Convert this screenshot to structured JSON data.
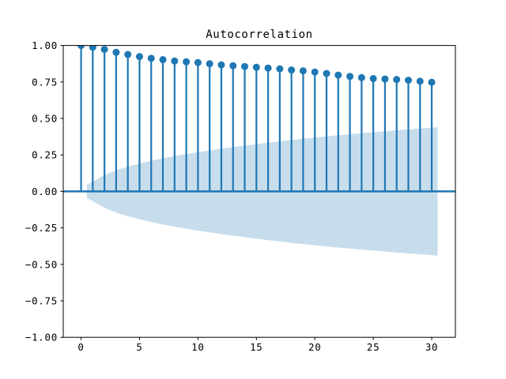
{
  "window": {
    "background": "#ffffff"
  },
  "chart_data": {
    "type": "stem",
    "title": "Autocorrelation",
    "xlabel": "",
    "ylabel": "",
    "xlim": [
      -1.525,
      32.025
    ],
    "ylim": [
      -1.0,
      1.0
    ],
    "grid": false,
    "legend": "none",
    "x": [
      0,
      1,
      2,
      3,
      4,
      5,
      6,
      7,
      8,
      9,
      10,
      11,
      12,
      13,
      14,
      15,
      16,
      17,
      18,
      19,
      20,
      21,
      22,
      23,
      24,
      25,
      26,
      27,
      28,
      29,
      30
    ],
    "values": [
      1.0,
      0.988,
      0.973,
      0.953,
      0.938,
      0.924,
      0.912,
      0.903,
      0.894,
      0.888,
      0.883,
      0.875,
      0.867,
      0.861,
      0.856,
      0.851,
      0.845,
      0.84,
      0.832,
      0.826,
      0.818,
      0.808,
      0.797,
      0.788,
      0.78,
      0.773,
      0.77,
      0.767,
      0.762,
      0.755,
      0.748
    ],
    "confidence_band": {
      "x": [
        0.5,
        1,
        2,
        3,
        4,
        5,
        6,
        7,
        8,
        9,
        10,
        11,
        12,
        13,
        14,
        15,
        16,
        17,
        18,
        19,
        20,
        21,
        22,
        23,
        24,
        25,
        26,
        27,
        28,
        29,
        30,
        30.5
      ],
      "halfwidth": [
        0.047,
        0.066,
        0.113,
        0.145,
        0.17,
        0.191,
        0.21,
        0.227,
        0.242,
        0.256,
        0.269,
        0.281,
        0.293,
        0.304,
        0.314,
        0.324,
        0.334,
        0.343,
        0.352,
        0.361,
        0.369,
        0.377,
        0.385,
        0.392,
        0.399,
        0.406,
        0.412,
        0.419,
        0.425,
        0.431,
        0.437,
        0.44
      ],
      "centered_at": 0.0,
      "fill_color": "#1f77b4",
      "fill_opacity": 0.25
    },
    "zero_line": {
      "y": 0.0,
      "color": "#1f77b4",
      "width": 2.5
    },
    "yticks": {
      "values": [
        1.0,
        0.75,
        0.5,
        0.25,
        0.0,
        -0.25,
        -0.5,
        -0.75,
        -1.0
      ],
      "labels": [
        "1.00",
        "0.75",
        "0.50",
        "0.25",
        "0.00",
        "−0.25",
        "−0.50",
        "−0.75",
        "−1.00"
      ]
    },
    "xticks": {
      "values": [
        0,
        5,
        10,
        15,
        20,
        25,
        30
      ],
      "labels": [
        "0",
        "5",
        "10",
        "15",
        "20",
        "25",
        "30"
      ]
    },
    "colors": {
      "accent": "#1f77b4",
      "spine": "#000000",
      "text": "#000000",
      "background": "#ffffff"
    },
    "style": {
      "stem_width": 2.2,
      "marker_radius": 4.5,
      "tick_length": 3.5
    }
  }
}
